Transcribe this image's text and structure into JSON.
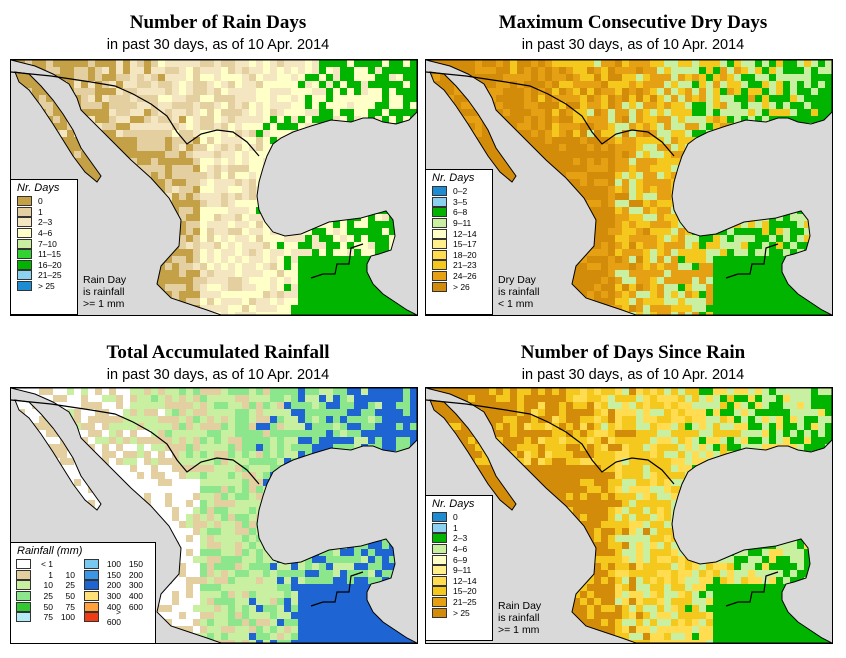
{
  "panels": [
    {
      "title": "Number of Rain Days",
      "subtitle": "in past 30 days, as of  10 Apr. 2014",
      "legend_title": "Nr. Days",
      "legend": [
        {
          "label": "0",
          "color": "#c4a046"
        },
        {
          "label": "1",
          "color": "#e3cfa0"
        },
        {
          "label": "2–3",
          "color": "#f4e6c0"
        },
        {
          "label": "4–6",
          "color": "#ffffc8"
        },
        {
          "label": "7–10",
          "color": "#c8f0a0"
        },
        {
          "label": "11–15",
          "color": "#32d232"
        },
        {
          "label": "16–20",
          "color": "#00b400"
        },
        {
          "label": "21–25",
          "color": "#8cd2f0"
        },
        {
          "label": "> 25",
          "color": "#1e8cd2"
        }
      ],
      "note": [
        "Rain Day",
        "is rainfall",
        ">= 1 mm"
      ],
      "palette": {
        "a": "#c4a046",
        "b": "#e3cfa0",
        "c": "#f4e6c0",
        "d": "#ffffc8",
        "g": "#00b400"
      }
    },
    {
      "title": "Maximum Consecutive Dry Days",
      "subtitle": "in past 30 days, as of  10 Apr. 2014",
      "legend_title": "Nr. Days",
      "legend": [
        {
          "label": "0–2",
          "color": "#1e8cd2"
        },
        {
          "label": "3–5",
          "color": "#8cd2f0"
        },
        {
          "label": "6–8",
          "color": "#00b400"
        },
        {
          "label": "9–11",
          "color": "#c8f0a0"
        },
        {
          "label": "12–14",
          "color": "#ffffc8"
        },
        {
          "label": "15–17",
          "color": "#fff08c"
        },
        {
          "label": "18–20",
          "color": "#ffdc50"
        },
        {
          "label": "21–23",
          "color": "#f5c81e"
        },
        {
          "label": "24–26",
          "color": "#e6a014"
        },
        {
          "label": "> 26",
          "color": "#d28c0a"
        }
      ],
      "note": [
        "Dry Day",
        "is rainfall",
        "< 1 mm"
      ],
      "palette": {
        "a": "#d28c0a",
        "b": "#e6a014",
        "c": "#f5c81e",
        "d": "#c8f0a0",
        "g": "#00b400"
      }
    },
    {
      "title": "Total Accumulated Rainfall",
      "subtitle": "in past 30 days, as of  10 Apr. 2014",
      "legend_title": "Rainfall (mm)",
      "rain_legend_left": [
        {
          "lo": "< 1",
          "hi": "",
          "color": "#ffffff"
        },
        {
          "lo": "1",
          "hi": "10",
          "color": "#e3cfa0"
        },
        {
          "lo": "10",
          "hi": "25",
          "color": "#c8f0a0"
        },
        {
          "lo": "25",
          "hi": "50",
          "color": "#8ce68c"
        },
        {
          "lo": "50",
          "hi": "75",
          "color": "#32c832"
        },
        {
          "lo": "75",
          "hi": "100",
          "color": "#b4ebf5"
        }
      ],
      "rain_legend_right": [
        {
          "lo": "100",
          "hi": "150",
          "color": "#78c8f0"
        },
        {
          "lo": "150",
          "hi": "200",
          "color": "#3c96e6"
        },
        {
          "lo": "200",
          "hi": "300",
          "color": "#1e64d2"
        },
        {
          "lo": "300",
          "hi": "400",
          "color": "#ffe178"
        },
        {
          "lo": "400",
          "hi": "600",
          "color": "#ffa03c"
        },
        {
          "lo": "> 600",
          "hi": "",
          "color": "#f03c14"
        }
      ],
      "palette": {
        "a": "#ffffff",
        "b": "#e3cfa0",
        "c": "#c8f0a0",
        "d": "#8ce68c",
        "g": "#1e64d2"
      }
    },
    {
      "title": "Number of Days Since Rain",
      "subtitle": "in past 30 days, as of  10 Apr. 2014",
      "legend_title": "Nr. Days",
      "legend": [
        {
          "label": "0",
          "color": "#1e8cd2"
        },
        {
          "label": "1",
          "color": "#8cd2f0"
        },
        {
          "label": "2–3",
          "color": "#00b400"
        },
        {
          "label": "4–6",
          "color": "#c8f0a0"
        },
        {
          "label": "6–9",
          "color": "#ffffc8"
        },
        {
          "label": "9–11",
          "color": "#fff08c"
        },
        {
          "label": "12–14",
          "color": "#ffdc50"
        },
        {
          "label": "15–20",
          "color": "#f5c81e"
        },
        {
          "label": "21–25",
          "color": "#e6a014"
        },
        {
          "label": "> 25",
          "color": "#d28c0a"
        }
      ],
      "note": [
        "Rain Day",
        "is rainfall",
        ">= 1 mm"
      ],
      "palette": {
        "a": "#d28c0a",
        "b": "#f5c81e",
        "c": "#ffdc50",
        "d": "#c8f0a0",
        "g": "#00b400"
      }
    }
  ],
  "colors": {
    "water": "#d9d9d9",
    "border": "#000000"
  }
}
